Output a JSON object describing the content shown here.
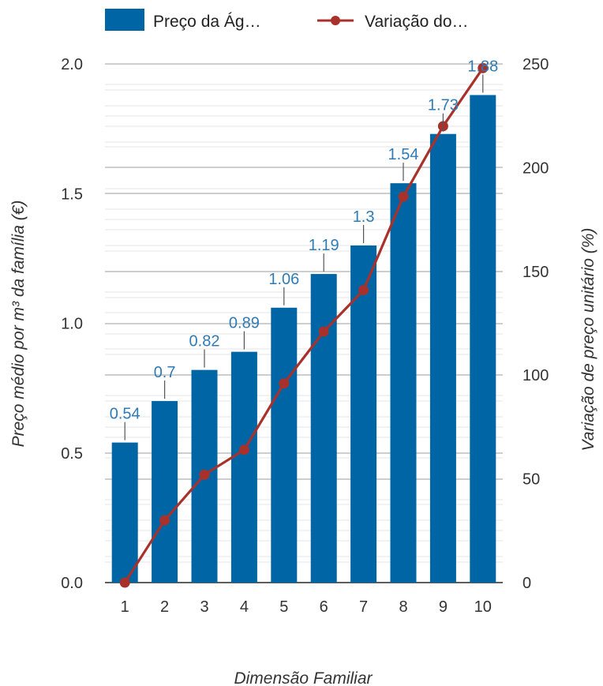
{
  "chart_data": {
    "type": "bar",
    "categories": [
      "1",
      "2",
      "3",
      "4",
      "5",
      "6",
      "7",
      "8",
      "9",
      "10"
    ],
    "series": [
      {
        "name": "Preço da Ág…",
        "type": "bar",
        "axis": "left",
        "values": [
          0.54,
          0.7,
          0.82,
          0.89,
          1.06,
          1.19,
          1.3,
          1.54,
          1.73,
          1.88
        ],
        "labels": [
          "0.54",
          "0.7",
          "0.82",
          "0.89",
          "1.06",
          "1.19",
          "1.3",
          "1.54",
          "1.73",
          "1.88"
        ]
      },
      {
        "name": "Variação do…",
        "type": "line",
        "axis": "right",
        "values": [
          0,
          30,
          52,
          64,
          96,
          121,
          141,
          186,
          220,
          248
        ]
      }
    ],
    "xlabel": "Dimensão Familiar",
    "ylabel": "Preço médio por m³ da família (€)",
    "y2label": "Variação de preço unitário (%)",
    "ylim": [
      0,
      2.0
    ],
    "y2lim": [
      0,
      250
    ],
    "yticks": [
      "0.0",
      "0.5",
      "1.0",
      "1.5",
      "2.0"
    ],
    "y2ticks": [
      "0",
      "50",
      "100",
      "150",
      "200",
      "250"
    ],
    "grid": true,
    "legend_position": "top",
    "colors": {
      "bar": "#0065a4",
      "line": "#a8322b",
      "label": "#2f7bb5",
      "grid": "#cfcfcf"
    }
  }
}
